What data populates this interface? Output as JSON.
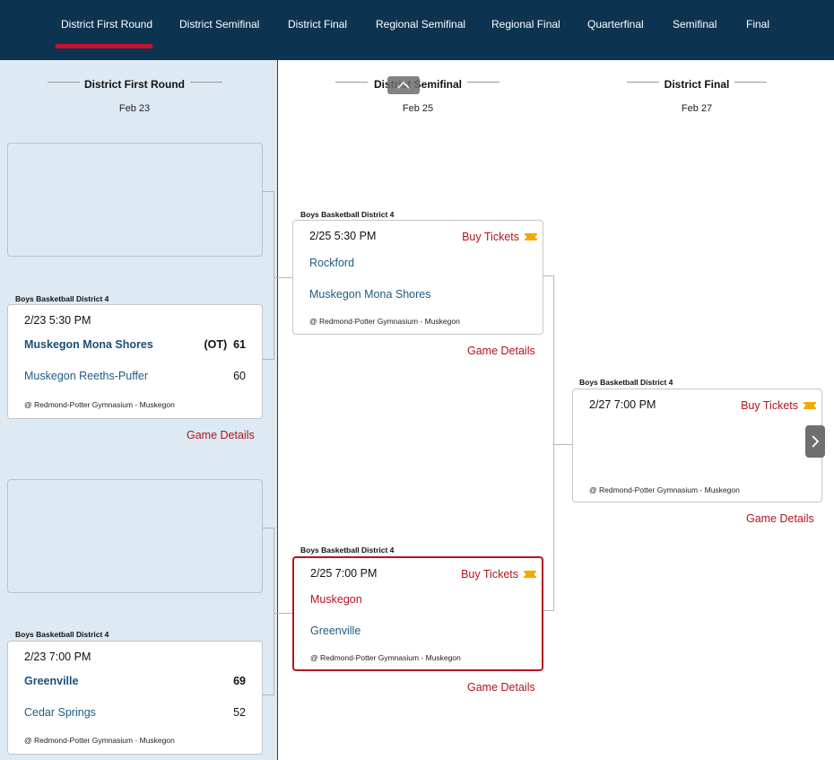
{
  "nav": {
    "tabs": [
      {
        "label": "District First Round",
        "active": true
      },
      {
        "label": "District Semifinal"
      },
      {
        "label": "District Final"
      },
      {
        "label": "Regional Semifinal"
      },
      {
        "label": "Regional Final"
      },
      {
        "label": "Quarterfinal"
      },
      {
        "label": "Semifinal"
      },
      {
        "label": "Final"
      }
    ]
  },
  "colors": {
    "nav_bg": "#0c3450",
    "accent_red": "#b3141f",
    "team_blue": "#1f5b82",
    "ticket_gold": "#f5a800",
    "column_bg": "#dde9f3"
  },
  "columns": [
    {
      "title": "District First Round",
      "date": "Feb 23"
    },
    {
      "title": "District Semifinal",
      "date": "Feb 25"
    },
    {
      "title": "District Final",
      "date": "Feb 27"
    }
  ],
  "games": {
    "r1_g2": {
      "district": "Boys Basketball District 4",
      "time": "2/23 5:30 PM",
      "team1": "Muskegon Mona Shores",
      "ot": "(OT)",
      "score1": "61",
      "team2": "Muskegon Reeths-Puffer",
      "score2": "60",
      "venue": "@ Redmond-Potter Gymnasium - Muskegon",
      "details": "Game Details"
    },
    "r1_g4": {
      "district": "Boys Basketball District 4",
      "time": "2/23 7:00 PM",
      "team1": "Greenville",
      "score1": "69",
      "team2": "Cedar Springs",
      "score2": "52",
      "venue": "@ Redmond-Potter Gymnasium - Muskegon"
    },
    "sf_g1": {
      "district": "Boys Basketball District 4",
      "time": "2/25 5:30 PM",
      "buy": "Buy Tickets",
      "team1": "Rockford",
      "team2": "Muskegon Mona Shores",
      "venue": "@ Redmond-Potter Gymnasium - Muskegon",
      "details": "Game Details"
    },
    "sf_g2": {
      "district": "Boys Basketball District 4",
      "time": "2/25 7:00 PM",
      "buy": "Buy Tickets",
      "team1": "Muskegon",
      "team2": "Greenville",
      "venue": "@ Redmond-Potter Gymnasium - Muskegon",
      "details": "Game Details"
    },
    "final": {
      "district": "Boys Basketball District 4",
      "time": "2/27 7:00 PM",
      "buy": "Buy Tickets",
      "venue": "@ Redmond-Potter Gymnasium - Muskegon",
      "details": "Game Details"
    }
  }
}
